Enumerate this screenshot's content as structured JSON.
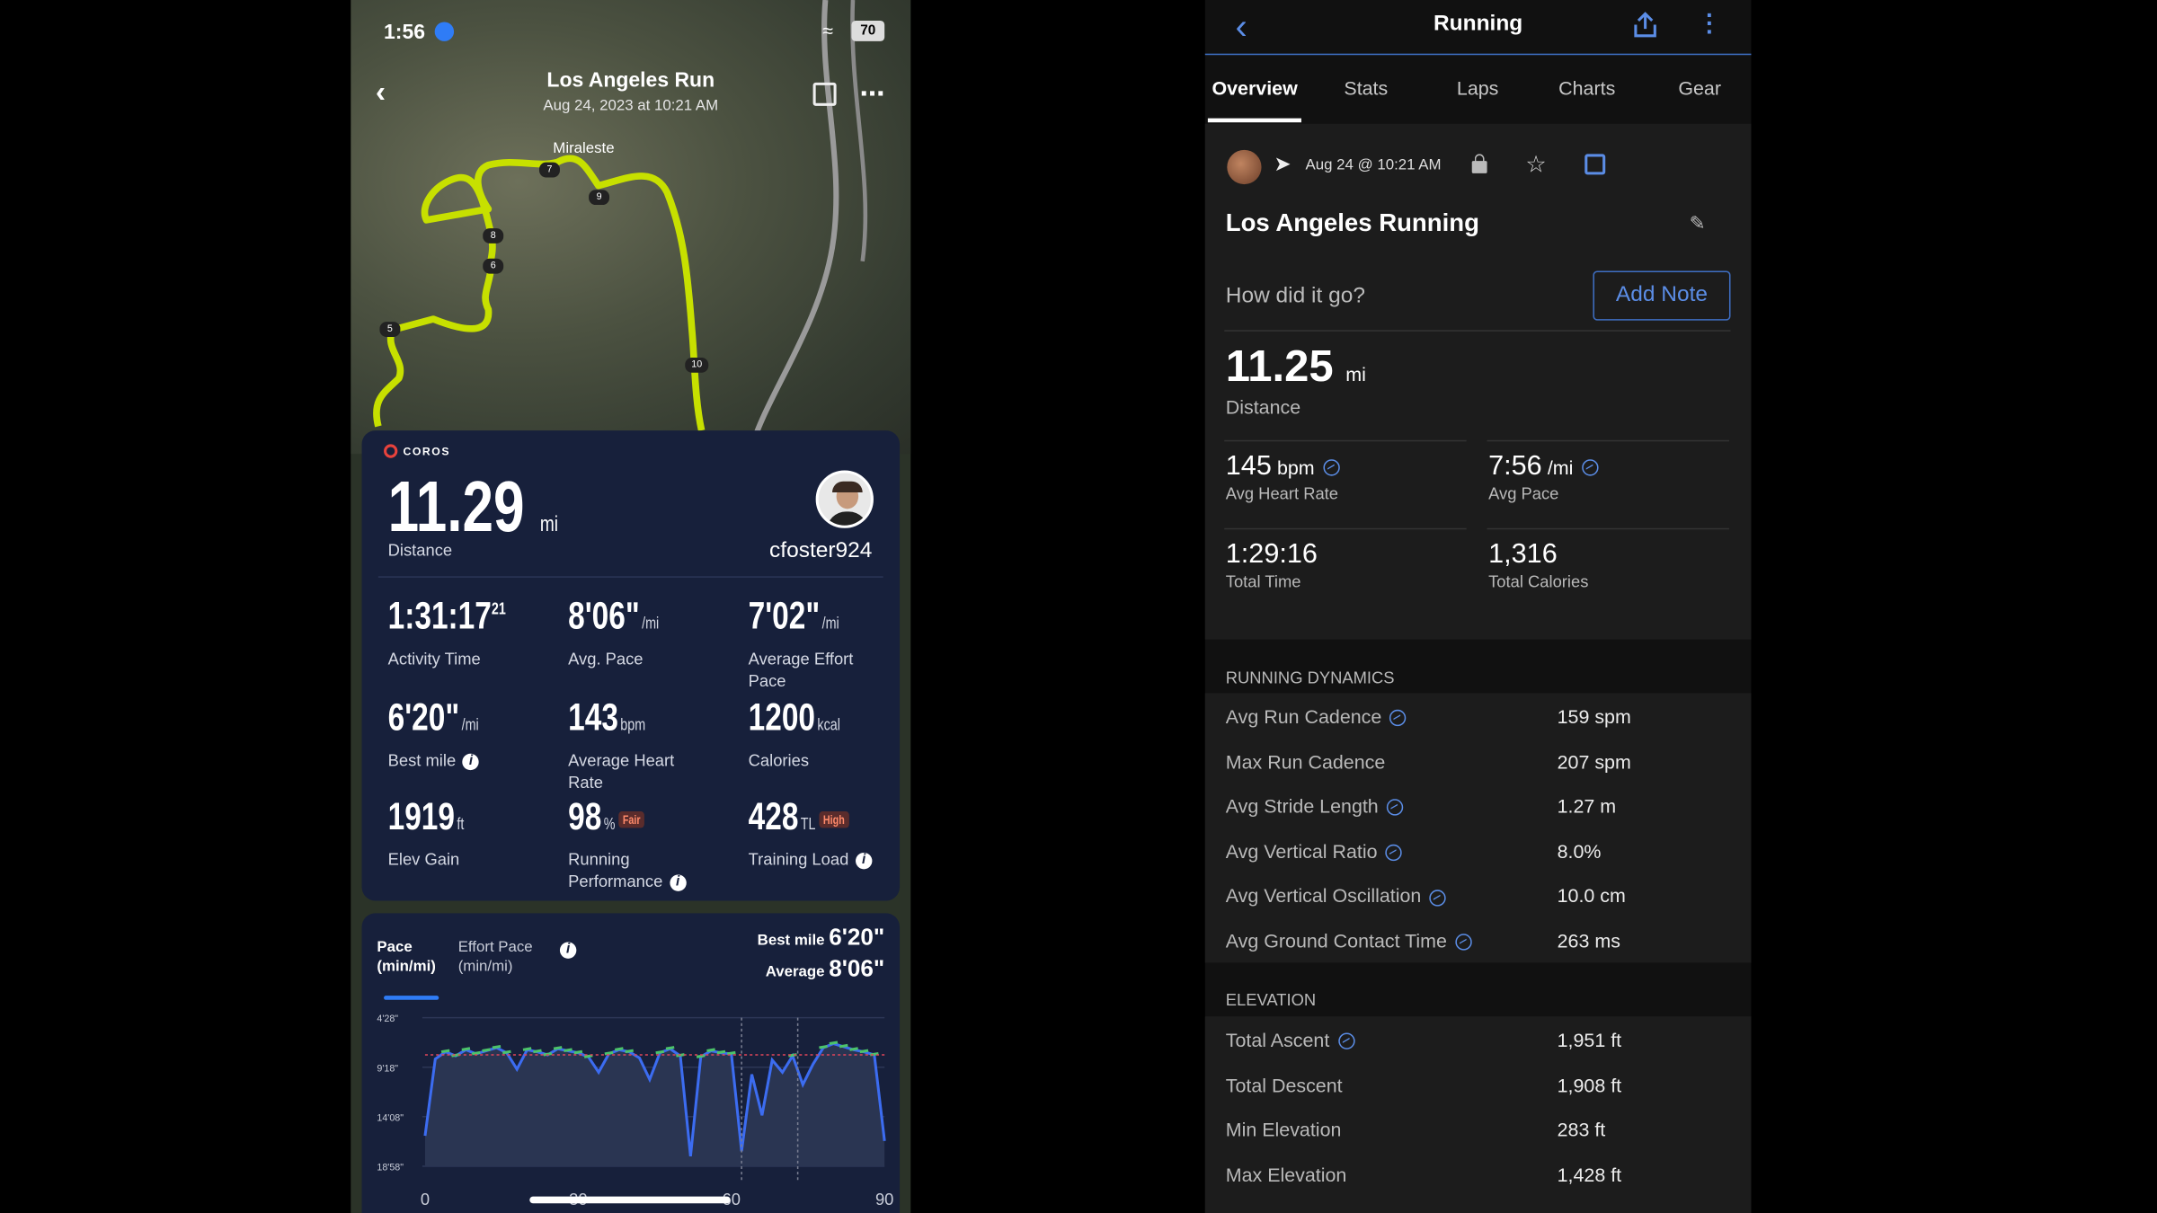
{
  "left": {
    "status": {
      "time": "1:56",
      "battery": "70"
    },
    "header": {
      "title": "Los Angeles Run",
      "subtitle": "Aug 24, 2023 at 10:21 AM"
    },
    "map": {
      "place": "Miraleste",
      "markers": [
        "7",
        "9",
        "8",
        "6",
        "5",
        "10"
      ]
    },
    "brand": "COROS",
    "distance": {
      "value": "11.29",
      "unit": "mi",
      "label": "Distance"
    },
    "user": "cfoster924",
    "stats": [
      {
        "value": "1:31:17",
        "sup": "21",
        "unit": "",
        "label": "Activity Time"
      },
      {
        "value": "8'06\"",
        "unit": "/mi",
        "label": "Avg. Pace"
      },
      {
        "value": "7'02\"",
        "unit": "/mi",
        "label": "Average Effort Pace"
      },
      {
        "value": "6'20\"",
        "unit": "/mi",
        "label": "Best mile"
      },
      {
        "value": "143",
        "unit": "bpm",
        "label": "Average Heart Rate"
      },
      {
        "value": "1200",
        "unit": "kcal",
        "label": "Calories"
      },
      {
        "value": "1919",
        "unit": "ft",
        "label": "Elev Gain"
      },
      {
        "value": "98",
        "unit": "%",
        "badge": "Fair",
        "label": "Running Performance"
      },
      {
        "value": "428",
        "unit": "TL",
        "badge": "High",
        "label": "Training Load"
      }
    ],
    "chart": {
      "tab1": "Pace",
      "tab1b": "(min/mi)",
      "tab2": "Effort Pace",
      "tab2b": "(min/mi)",
      "best_label": "Best mile",
      "best_value": "6'20\"",
      "avg_label": "Average",
      "avg_value": "8'06\"",
      "yticks": [
        "4'28\"",
        "9'18\"",
        "14'08\"",
        "18'58\""
      ],
      "xticks": [
        "0",
        "30",
        "60",
        "90"
      ]
    }
  },
  "chart_data": {
    "type": "line",
    "xlabel": "",
    "ylabel": "",
    "x": [
      0,
      2,
      4,
      6,
      8,
      10,
      12,
      14,
      16,
      18,
      20,
      22,
      24,
      26,
      28,
      30,
      32,
      34,
      36,
      38,
      40,
      42,
      44,
      46,
      48,
      50,
      52,
      54,
      56,
      58,
      60,
      62,
      64,
      66,
      68,
      70,
      72,
      74,
      76,
      78,
      80,
      82,
      84,
      86,
      88,
      90
    ],
    "series": [
      {
        "values": [
          16,
          8.5,
          7.8,
          8.2,
          7.6,
          8.0,
          7.7,
          7.4,
          7.9,
          9.5,
          7.6,
          7.8,
          8.1,
          7.5,
          7.7,
          7.9,
          8.3,
          9.8,
          8.0,
          7.6,
          7.8,
          8.4,
          10.5,
          7.9,
          7.5,
          8.2,
          18,
          8.3,
          7.7,
          7.9,
          8.0,
          17.5,
          10,
          14,
          8.6,
          9.8,
          8.2,
          11,
          9,
          7.4,
          7.0,
          7.3,
          7.6,
          7.8,
          8.1,
          16.5
        ]
      }
    ],
    "average": 8.1,
    "ylim": [
      18.97,
      4.47
    ],
    "xlim": [
      0,
      90
    ]
  },
  "right": {
    "title": "Running",
    "tabs": [
      "Overview",
      "Stats",
      "Laps",
      "Charts",
      "Gear"
    ],
    "date": "Aug 24 @ 10:21 AM",
    "activity": "Los Angeles Running",
    "note_prompt": "How did it go?",
    "add_note": "Add Note",
    "distance": {
      "value": "11.25",
      "unit": "mi",
      "label": "Distance"
    },
    "grid": [
      {
        "value": "145",
        "unit": "bpm",
        "label": "Avg Heart Rate",
        "icon": true
      },
      {
        "value": "7:56",
        "unit": "/mi",
        "label": "Avg Pace",
        "icon": true
      },
      {
        "value": "1:29:16",
        "unit": "",
        "label": "Total Time",
        "icon": false
      },
      {
        "value": "1,316",
        "unit": "",
        "label": "Total Calories",
        "icon": false
      }
    ],
    "dynamics_header": "RUNNING DYNAMICS",
    "dynamics": [
      {
        "label": "Avg Run Cadence",
        "value": "159 spm",
        "icon": true
      },
      {
        "label": "Max Run Cadence",
        "value": "207 spm",
        "icon": false
      },
      {
        "label": "Avg Stride Length",
        "value": "1.27 m",
        "icon": true
      },
      {
        "label": "Avg Vertical Ratio",
        "value": "8.0%",
        "icon": true
      },
      {
        "label": "Avg Vertical Oscillation",
        "value": "10.0 cm",
        "icon": true
      },
      {
        "label": "Avg Ground Contact Time",
        "value": "263 ms",
        "icon": true
      }
    ],
    "elevation_header": "ELEVATION",
    "elevation": [
      {
        "label": "Total Ascent",
        "value": "1,951 ft",
        "icon": true
      },
      {
        "label": "Total Descent",
        "value": "1,908 ft",
        "icon": false
      },
      {
        "label": "Min Elevation",
        "value": "283 ft",
        "icon": false
      },
      {
        "label": "Max Elevation",
        "value": "1,428 ft",
        "icon": false
      }
    ]
  }
}
